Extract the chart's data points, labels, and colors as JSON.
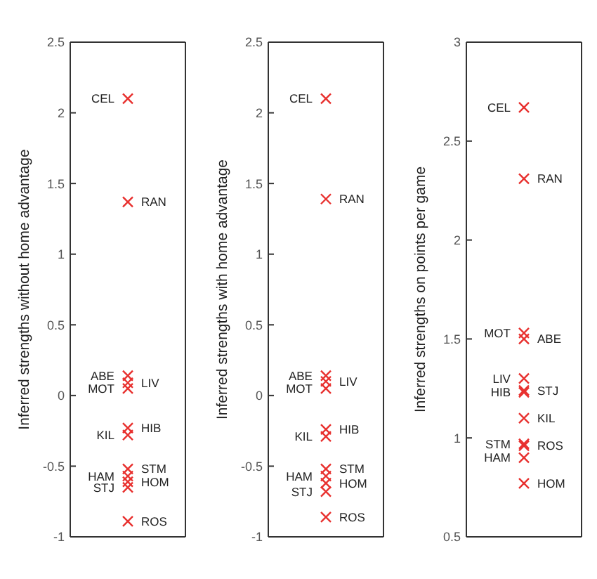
{
  "chart_data": [
    {
      "type": "scatter",
      "ylabel": "Inferred strengths without home advantage",
      "categories": [
        null
      ],
      "ylim": [
        -1,
        2.5
      ],
      "yticks": [
        -1,
        -0.5,
        0,
        0.5,
        1,
        1.5,
        2,
        2.5
      ],
      "marker": "cross",
      "series": [
        {
          "name": "CEL",
          "color": "#e8312f",
          "values": [
            2.1
          ]
        },
        {
          "name": "RAN",
          "color": "#e8312f",
          "values": [
            1.37
          ]
        },
        {
          "name": "ABE",
          "color": "#e8312f",
          "values": [
            0.14
          ]
        },
        {
          "name": "LIV",
          "color": "#e8312f",
          "values": [
            0.09
          ]
        },
        {
          "name": "MOT",
          "color": "#e8312f",
          "values": [
            0.05
          ]
        },
        {
          "name": "HIB",
          "color": "#e8312f",
          "values": [
            -0.23
          ]
        },
        {
          "name": "KIL",
          "color": "#e8312f",
          "values": [
            -0.28
          ]
        },
        {
          "name": "STM",
          "color": "#e8312f",
          "values": [
            -0.52
          ]
        },
        {
          "name": "HAM",
          "color": "#e8312f",
          "values": [
            -0.57
          ]
        },
        {
          "name": "HOM",
          "color": "#e8312f",
          "values": [
            -0.61
          ]
        },
        {
          "name": "STJ",
          "color": "#e8312f",
          "values": [
            -0.65
          ]
        },
        {
          "name": "ROS",
          "color": "#e8312f",
          "values": [
            -0.89
          ]
        }
      ]
    },
    {
      "type": "scatter",
      "ylabel": "Inferred strengths with home advantage",
      "categories": [
        null
      ],
      "ylim": [
        -1,
        2.5
      ],
      "yticks": [
        -1,
        -0.5,
        0,
        0.5,
        1,
        1.5,
        2,
        2.5
      ],
      "marker": "cross",
      "series": [
        {
          "name": "CEL",
          "color": "#e8312f",
          "values": [
            2.1
          ]
        },
        {
          "name": "RAN",
          "color": "#e8312f",
          "values": [
            1.39
          ]
        },
        {
          "name": "ABE",
          "color": "#e8312f",
          "values": [
            0.14
          ]
        },
        {
          "name": "LIV",
          "color": "#e8312f",
          "values": [
            0.1
          ]
        },
        {
          "name": "MOT",
          "color": "#e8312f",
          "values": [
            0.05
          ]
        },
        {
          "name": "HIB",
          "color": "#e8312f",
          "values": [
            -0.24
          ]
        },
        {
          "name": "KIL",
          "color": "#e8312f",
          "values": [
            -0.29
          ]
        },
        {
          "name": "STM",
          "color": "#e8312f",
          "values": [
            -0.52
          ]
        },
        {
          "name": "HAM",
          "color": "#e8312f",
          "values": [
            -0.57
          ]
        },
        {
          "name": "HOM",
          "color": "#e8312f",
          "values": [
            -0.62
          ]
        },
        {
          "name": "STJ",
          "color": "#e8312f",
          "values": [
            -0.68
          ]
        },
        {
          "name": "ROS",
          "color": "#e8312f",
          "values": [
            -0.86
          ]
        }
      ]
    },
    {
      "type": "scatter",
      "ylabel": "Inferred strengths on points per game",
      "categories": [
        null
      ],
      "ylim": [
        0.5,
        3
      ],
      "yticks": [
        0.5,
        1,
        1.5,
        2,
        2.5,
        3
      ],
      "marker": "cross",
      "series": [
        {
          "name": "CEL",
          "color": "#e8312f",
          "values": [
            2.67
          ]
        },
        {
          "name": "RAN",
          "color": "#e8312f",
          "values": [
            2.31
          ]
        },
        {
          "name": "MOT",
          "color": "#e8312f",
          "values": [
            1.53
          ]
        },
        {
          "name": "ABE",
          "color": "#e8312f",
          "values": [
            1.5
          ]
        },
        {
          "name": "LIV",
          "color": "#e8312f",
          "values": [
            1.3
          ]
        },
        {
          "name": "STJ",
          "color": "#e8312f",
          "values": [
            1.24
          ]
        },
        {
          "name": "HIB",
          "color": "#e8312f",
          "values": [
            1.23
          ]
        },
        {
          "name": "KIL",
          "color": "#e8312f",
          "values": [
            1.1
          ]
        },
        {
          "name": "STM",
          "color": "#e8312f",
          "values": [
            0.97
          ]
        },
        {
          "name": "ROS",
          "color": "#e8312f",
          "values": [
            0.96
          ]
        },
        {
          "name": "HAM",
          "color": "#e8312f",
          "values": [
            0.9
          ]
        },
        {
          "name": "HOM",
          "color": "#e8312f",
          "values": [
            0.77
          ]
        }
      ]
    }
  ]
}
